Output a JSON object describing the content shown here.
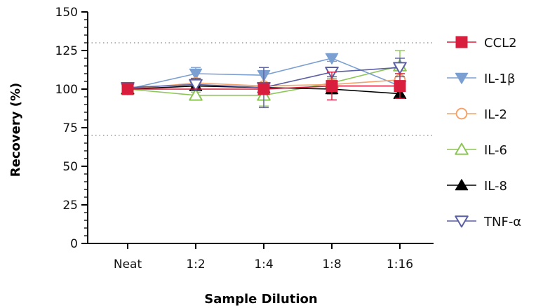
{
  "chart_data": {
    "type": "line",
    "title": "",
    "xlabel": "Sample Dilution",
    "ylabel": "Recovery (%)",
    "categories": [
      "Neat",
      "1:2",
      "1:4",
      "1:8",
      "1:16"
    ],
    "ylim": [
      0,
      150
    ],
    "yticks": [
      0,
      25,
      50,
      75,
      100,
      125,
      150
    ],
    "reference_lines": [
      70,
      130
    ],
    "legend_position": "right",
    "series": [
      {
        "name": "CCL2",
        "marker": "square",
        "color": "#d81e3c",
        "values": [
          100,
          null,
          100,
          102,
          102
        ],
        "errors": [
          0,
          null,
          2,
          9,
          8
        ]
      },
      {
        "name": "IL-1β",
        "marker": "triangle-down-filled",
        "color": "#7b9fd1",
        "values": [
          100,
          110,
          109,
          120,
          102
        ],
        "errors": [
          0,
          4,
          5,
          2,
          0
        ]
      },
      {
        "name": "IL-2",
        "marker": "circle-open",
        "color": "#f4a46a",
        "values": [
          100,
          104,
          102,
          103,
          106
        ],
        "errors": [
          2,
          3,
          2,
          3,
          4
        ]
      },
      {
        "name": "IL-6",
        "marker": "triangle-up-open",
        "color": "#8dc656",
        "values": [
          100,
          96,
          96,
          104,
          115
        ],
        "errors": [
          0,
          2,
          7,
          3,
          10
        ]
      },
      {
        "name": "IL-8",
        "marker": "triangle-up-filled",
        "color": "#000000",
        "values": [
          100,
          102,
          101,
          100,
          97
        ],
        "errors": [
          0,
          2,
          2,
          3,
          3
        ]
      },
      {
        "name": "TNF-α",
        "marker": "triangle-down-open",
        "color": "#5b5fa3",
        "values": [
          101,
          103,
          101,
          111,
          114
        ],
        "errors": [
          1,
          4,
          13,
          3,
          6
        ]
      }
    ]
  }
}
